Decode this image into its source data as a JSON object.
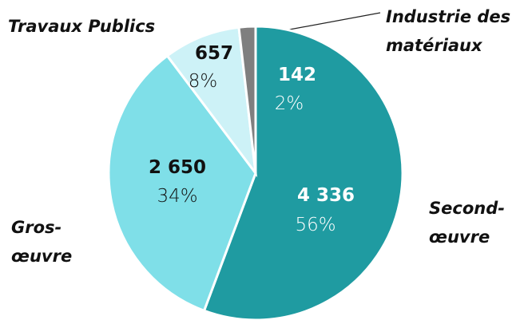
{
  "chart_data": {
    "type": "pie",
    "categories": [
      "Second-œuvre",
      "Gros-œuvre",
      "Travaux Publics",
      "Industrie des matériaux"
    ],
    "values": [
      4336,
      2650,
      657,
      142
    ],
    "value_labels": [
      "4 336",
      "2 650",
      "657",
      "142"
    ],
    "percentages": [
      56,
      34,
      8,
      2
    ],
    "percentage_labels": [
      "56%",
      "34%",
      "8%",
      "2%"
    ],
    "colors": [
      "#1f9ba1",
      "#7fdfe8",
      "#cdf2f7",
      "#7f7f7f"
    ]
  }
}
